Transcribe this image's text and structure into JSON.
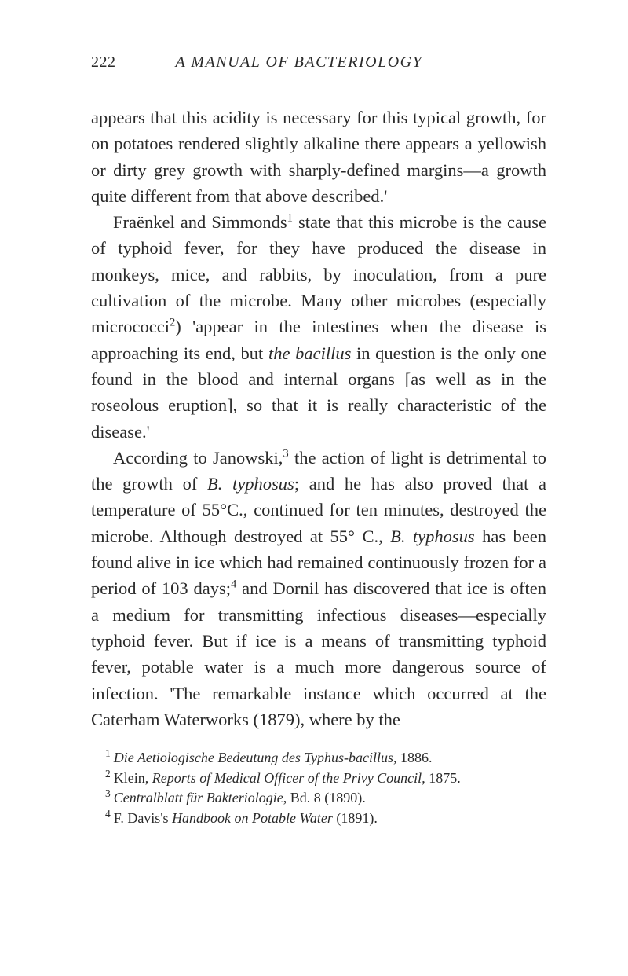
{
  "header": {
    "page_number": "222",
    "book_title": "A MANUAL OF BACTERIOLOGY"
  },
  "paragraphs": {
    "p1_part1": "appears that this acidity is necessary for this typical growth, for on potatoes rendered slightly alkaline there appears a yellowish or dirty grey growth with sharply-defined margins—a growth quite different from that above described.'",
    "p2_part1": "Fraënkel and Simmonds",
    "p2_sup1": "1",
    "p2_part2": " state that this microbe is the cause of typhoid fever, for they have produced the disease in monkeys, mice, and rabbits, by inoculation, from a pure cultivation of the microbe. Many other microbes (especially micrococci",
    "p2_sup2": "2",
    "p2_part3": ") 'appear in the intestines when the disease is approaching its end, but ",
    "p2_italic1": "the bacillus",
    "p2_part4": " in question is the only one found in the blood and internal organs [as well as in the roseolous eruption], so that it is really characteristic of the disease.'",
    "p3_part1": "According to Janowski,",
    "p3_sup1": "3",
    "p3_part2": " the action of light is detrimental to the growth of ",
    "p3_italic1": "B. typhosus",
    "p3_part3": "; and he has also proved that a temperature of 55°C., continued for ten minutes, destroyed the microbe. Although destroyed at 55° C., ",
    "p3_italic2": "B. typhosus",
    "p3_part4": " has been found alive in ice which had remained continuously frozen for a period of 103 days;",
    "p3_sup2": "4",
    "p3_part5": " and Dornil has discovered that ice is often a medium for transmitting infectious diseases—especially typhoid fever. But if ice is a means of transmitting typhoid fever, potable water is a much more dangerous source of infection. 'The remarkable instance which occurred at the Caterham Waterworks (1879), where by the"
  },
  "footnotes": {
    "fn1_num": "1",
    "fn1_italic": "Die Aetiologische Bedeutung des Typhus-bacillus",
    "fn1_rest": ", 1886.",
    "fn2_num": "2",
    "fn2_part1": "Klein, ",
    "fn2_italic": "Reports of Medical Officer of the Privy Council",
    "fn2_rest": ", 1875.",
    "fn3_num": "3",
    "fn3_italic": "Centralblatt für Bakteriologie",
    "fn3_rest": ", Bd. 8 (1890).",
    "fn4_num": "4",
    "fn4_part1": "F. Davis's ",
    "fn4_italic": "Handbook on Potable Water",
    "fn4_rest": " (1891)."
  }
}
